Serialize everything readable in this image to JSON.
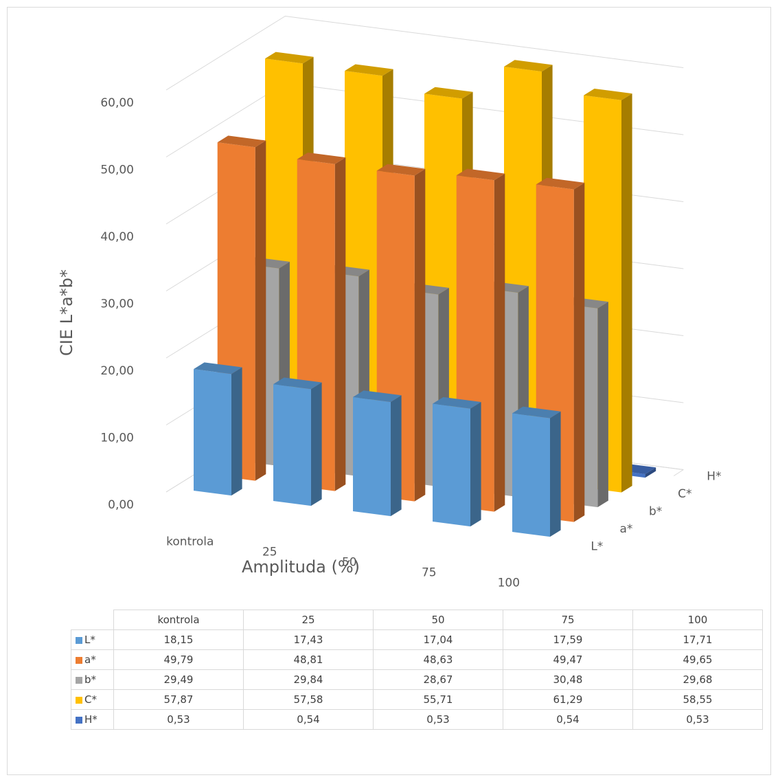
{
  "chart_data": {
    "type": "bar",
    "subtype": "3d-clustered-columns",
    "title": "",
    "xlabel": "Amplituda (%)",
    "ylabel": "CIE L*a*b*",
    "categories": [
      "kontrola",
      "25",
      "50",
      "75",
      "100"
    ],
    "series": [
      {
        "name": "L*",
        "values": [
          18.15,
          17.43,
          17.04,
          17.59,
          17.71
        ],
        "color": "#5b9bd5"
      },
      {
        "name": "a*",
        "values": [
          49.79,
          48.81,
          48.63,
          49.47,
          49.65
        ],
        "color": "#ed7d31"
      },
      {
        "name": "b*",
        "values": [
          29.49,
          29.84,
          28.67,
          30.48,
          29.68
        ],
        "color": "#a5a5a5"
      },
      {
        "name": "C*",
        "values": [
          57.87,
          57.58,
          55.71,
          61.29,
          58.55
        ],
        "color": "#ffc000"
      },
      {
        "name": "H*",
        "values": [
          0.53,
          0.54,
          0.53,
          0.54,
          0.53
        ],
        "color": "#4472c4"
      }
    ],
    "y_ticks": [
      "0,00",
      "10,00",
      "20,00",
      "30,00",
      "40,00",
      "50,00",
      "60,00"
    ],
    "ylim": [
      0,
      60
    ],
    "grid": true,
    "data_table": {
      "columns": [
        "kontrola",
        "25",
        "50",
        "75",
        "100"
      ],
      "rows": [
        {
          "series": "L*",
          "values": [
            "18,15",
            "17,43",
            "17,04",
            "17,59",
            "17,71"
          ]
        },
        {
          "series": "a*",
          "values": [
            "49,79",
            "48,81",
            "48,63",
            "49,47",
            "49,65"
          ]
        },
        {
          "series": "b*",
          "values": [
            "29,49",
            "29,84",
            "28,67",
            "30,48",
            "29,68"
          ]
        },
        {
          "series": "C*",
          "values": [
            "57,87",
            "57,58",
            "55,71",
            "61,29",
            "58,55"
          ]
        },
        {
          "series": "H*",
          "values": [
            "0,53",
            "0,54",
            "0,53",
            "0,54",
            "0,53"
          ]
        }
      ]
    }
  }
}
